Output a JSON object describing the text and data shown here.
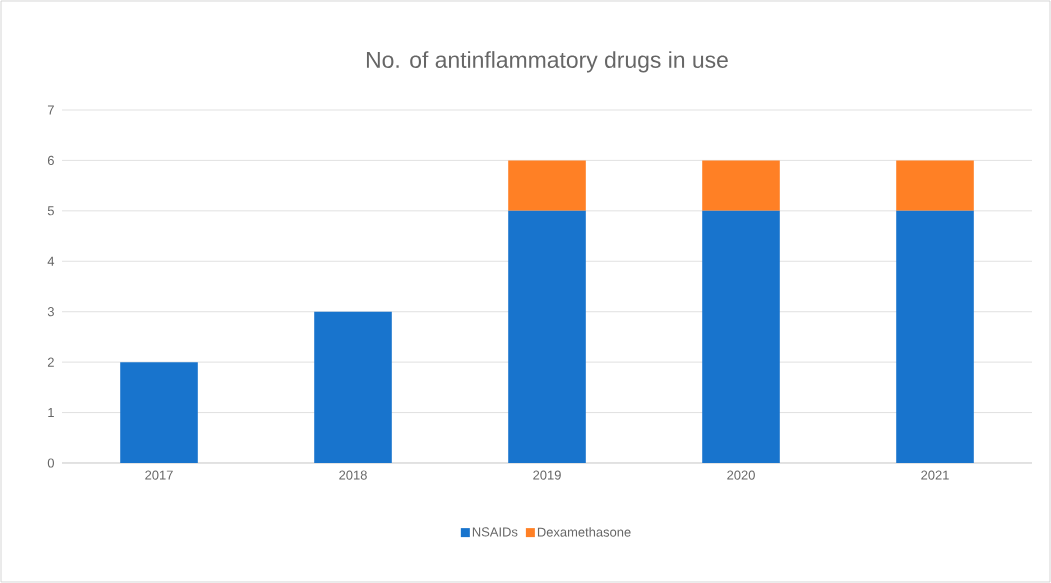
{
  "chart_data": {
    "type": "bar",
    "title": "No. of antinflammatory drugs in use",
    "categories": [
      "2017",
      "2018",
      "2019",
      "2020",
      "2021"
    ],
    "series": [
      {
        "name": "NSAIDs",
        "color": "#1874cd",
        "values": [
          2,
          3,
          5,
          5,
          5
        ]
      },
      {
        "name": "Dexamethasone",
        "color": "#ff8025",
        "values": [
          0,
          0,
          1,
          1,
          1
        ]
      }
    ],
    "stacked": true,
    "ylim": [
      0,
      7
    ],
    "yticks": [
      0,
      1,
      2,
      3,
      4,
      5,
      6,
      7
    ],
    "grid": "y",
    "legend": "bottom"
  }
}
